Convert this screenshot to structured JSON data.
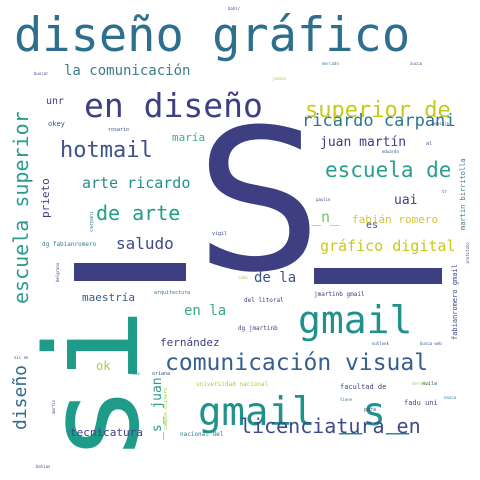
{
  "words": {
    "s_big": "S",
    "si_vertical": "si",
    "diseno_grafico": "diseño gráfico",
    "en_diseno": "en diseño",
    "gmail_s": "gmail _s_",
    "gmail": "gmail",
    "comunicacion_visual": "comunicación visual",
    "licenciatura_en": "licenciatura en",
    "superior_de": "superior de",
    "escuela_de": "escuela de",
    "ricardo_carpani": "ricardo carpani",
    "hotmail": "hotmail",
    "de_arte": "de arte",
    "arte_ricardo": "arte ricardo",
    "la_comunicacion": "la comunicación",
    "juan_martin": "juan martín",
    "escuela_superior": "escuela superior",
    "saludo": "saludo",
    "grafico_digital": "gráfico digital",
    "fabian_romero": "fabián romero",
    "n_": "_n_",
    "de_la": "de la",
    "en_la": "en la",
    "maestria": "maestría",
    "fernandez": "fernández",
    "ok": "ok",
    "diseno_vertical": "diseño",
    "s_juan": "_s_ juan",
    "tecnicatura": "tecnicatura",
    "maria": "maría",
    "uai": "uai",
    "es": "es",
    "prieto": "prieto",
    "unr": "unr",
    "okey": "okey",
    "rosario": "rosario",
    "licenciado": "licenciado",
    "dg_jmartinb": "dg jmartinb",
    "jmartinb_gmail": "jmartinb gmail",
    "fabianromero_gmail": "fabianromero gmail",
    "martin_birritolla": "martin birritolla",
    "dg_fabianromero": "dg fabianromero",
    "del_litoral": "del litoral",
    "universidad_nacional": "universidad nacional",
    "facultad_de": "facultad de",
    "fadu_uni": "fadu uni",
    "nacional_del": "nacional del",
    "arquitectura": "arquitectura",
    "oriana": "oriana",
    "para": "para",
    "avila": "avila",
    "tiene": "tiene",
    "carpani": "carpani",
    "buscar": "buscar",
    "vigil": "vigil",
    "caba": "caba",
    "bahir": "bahir",
    "eduardo": "eduardo",
    "mensaje": "mensaje",
    "jazmin": "jazmín",
    "mercado": "mercado",
    "zucca": "zucca",
    "belgrano": "belgrano",
    "rosa": "rosa",
    "campos_olivero": "campos olivero",
    "martin": "martín",
    "batias": "batias",
    "instituto": "instituto",
    "nazca": "nazca",
    "paulin": "paulin",
    "sic_en": "sic en",
    "busca_web": "busca web",
    "outlook": "outlook",
    "derecho": "derecho",
    "al": "al",
    "tr": "tr"
  }
}
